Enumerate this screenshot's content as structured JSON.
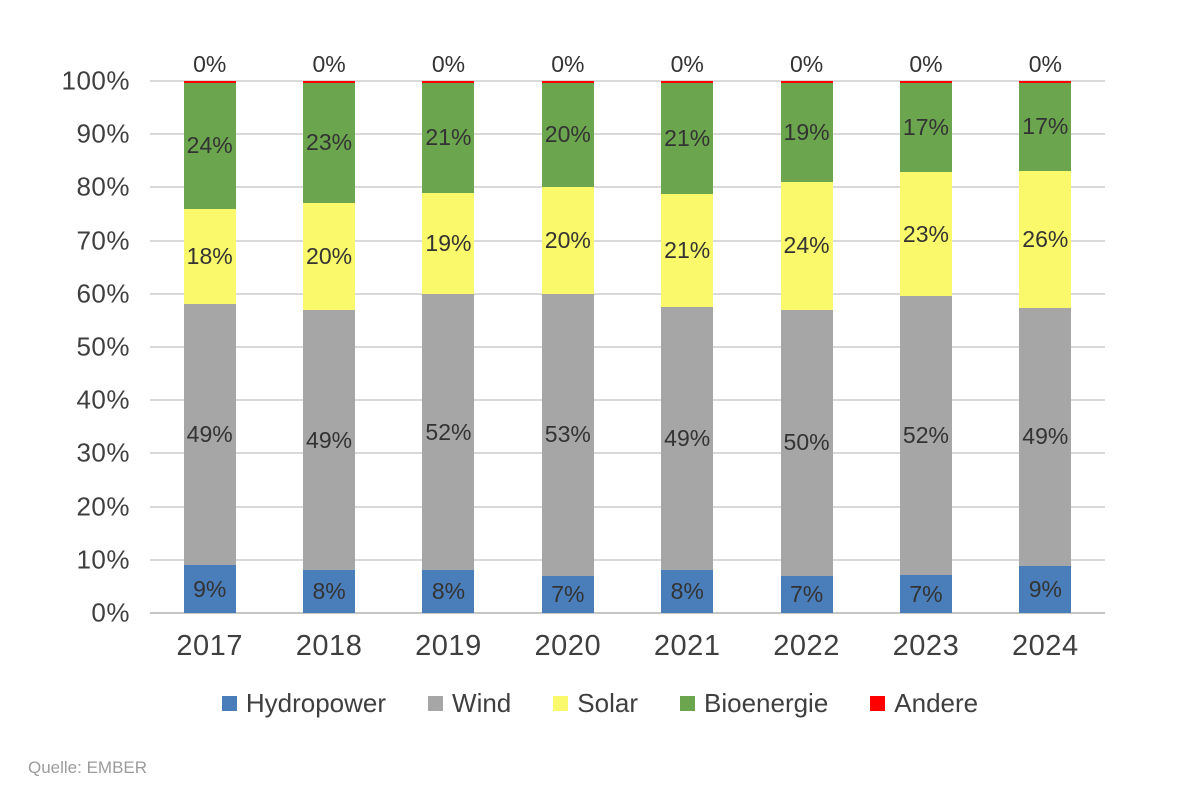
{
  "chart_data": {
    "type": "bar",
    "stacked": true,
    "orientation": "vertical",
    "categories": [
      "2017",
      "2018",
      "2019",
      "2020",
      "2021",
      "2022",
      "2023",
      "2024"
    ],
    "series": [
      {
        "name": "Hydropower",
        "color": "#4a7ebb",
        "values": [
          9,
          8,
          8,
          7,
          8,
          7,
          7,
          9
        ]
      },
      {
        "name": "Wind",
        "color": "#a6a6a6",
        "values": [
          49,
          49,
          52,
          53,
          49,
          50,
          52,
          49
        ]
      },
      {
        "name": "Solar",
        "color": "#faf96b",
        "values": [
          18,
          20,
          19,
          20,
          21,
          24,
          23,
          26
        ]
      },
      {
        "name": "Bioenergie",
        "color": "#6ba64e",
        "values": [
          24,
          23,
          21,
          20,
          21,
          19,
          17,
          17
        ]
      },
      {
        "name": "Andere",
        "color": "#ff0000",
        "values": [
          0,
          0,
          0,
          0,
          0,
          0,
          0,
          0
        ]
      }
    ],
    "value_suffix": "%",
    "y_ticks": [
      "0%",
      "10%",
      "20%",
      "30%",
      "40%",
      "50%",
      "60%",
      "70%",
      "80%",
      "90%",
      "100%"
    ],
    "ylim": [
      0,
      100
    ],
    "grid": true,
    "legend_position": "bottom",
    "title": "",
    "xlabel": "",
    "ylabel": ""
  },
  "source": {
    "label": "Quelle: EMBER"
  },
  "style": {
    "grid_color": "#d9d9d9",
    "axis_text_color": "#3f3f3f",
    "data_label_color": "#333333",
    "source_color": "#9b9b9b",
    "background": "#ffffff"
  }
}
